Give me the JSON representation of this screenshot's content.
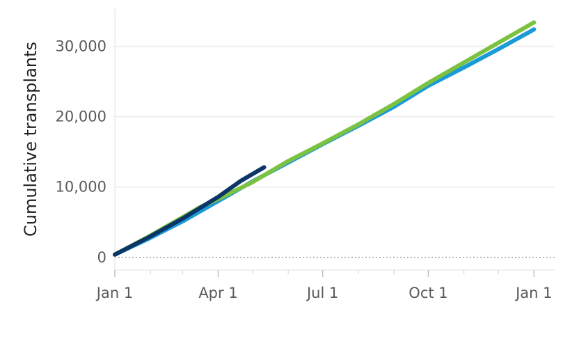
{
  "chart_data": {
    "type": "line",
    "title": "",
    "xlabel": "",
    "ylabel": "Cumulative transplants",
    "x_tick_labels": [
      "Jan 1",
      "Apr 1",
      "Jul 1",
      "Oct 1",
      "Jan 1"
    ],
    "x_tick_days": [
      0,
      90,
      181,
      273,
      365
    ],
    "y_tick_labels": [
      "0",
      "10,000",
      "20,000",
      "30,000"
    ],
    "y_tick_values": [
      0,
      10000,
      20000,
      30000
    ],
    "ylim": [
      -1800,
      35400
    ],
    "xlim_days": [
      0,
      383
    ],
    "grid": "horizontal",
    "zero_line": "dotted",
    "legend": "none",
    "series": [
      {
        "color": "#1a9ad6",
        "x_days": [
          0,
          30,
          60,
          90,
          120,
          150,
          181,
          212,
          243,
          273,
          304,
          334,
          365
        ],
        "values": [
          400,
          2700,
          5200,
          8000,
          10800,
          13400,
          16100,
          18700,
          21400,
          24400,
          27000,
          29600,
          32400
        ]
      },
      {
        "color": "#7cc242",
        "x_days": [
          0,
          30,
          60,
          75,
          90,
          120,
          150,
          181,
          212,
          243,
          273,
          304,
          334,
          365
        ],
        "values": [
          400,
          3000,
          5800,
          7200,
          8300,
          10700,
          13600,
          16200,
          18900,
          21800,
          24800,
          27700,
          30500,
          33400
        ]
      },
      {
        "color": "#0b3566",
        "x_days": [
          0,
          30,
          60,
          90,
          110,
          130
        ],
        "values": [
          400,
          2900,
          5600,
          8600,
          10900,
          12800
        ]
      }
    ]
  }
}
